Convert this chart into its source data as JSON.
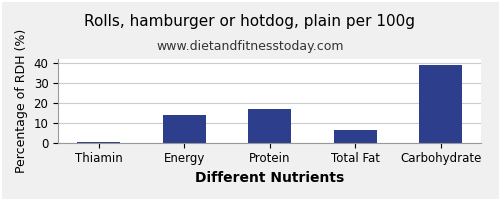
{
  "title": "Rolls, hamburger or hotdog, plain per 100g",
  "subtitle": "www.dietandfitnesstoday.com",
  "xlabel": "Different Nutrients",
  "ylabel": "Percentage of RDH (%)",
  "categories": [
    "Thiamin",
    "Energy",
    "Protein",
    "Total Fat",
    "Carbohydrate"
  ],
  "values": [
    0.3,
    14,
    17,
    6.5,
    39
  ],
  "bar_color": "#2d3f8c",
  "ylim": [
    0,
    42
  ],
  "yticks": [
    0,
    10,
    20,
    30,
    40
  ],
  "background_color": "#f0f0f0",
  "plot_bg_color": "#ffffff",
  "title_fontsize": 11,
  "subtitle_fontsize": 9,
  "xlabel_fontsize": 10,
  "ylabel_fontsize": 9,
  "tick_fontsize": 8.5,
  "grid_color": "#cccccc"
}
